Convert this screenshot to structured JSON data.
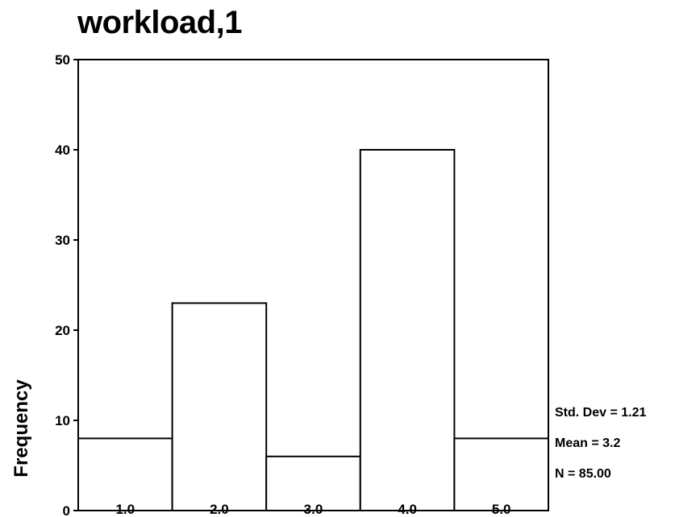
{
  "chart_data": {
    "type": "bar",
    "title": "workload,1",
    "xlabel": "",
    "ylabel": "Frequency",
    "categories": [
      "1.0",
      "2.0",
      "3.0",
      "4.0",
      "5.0"
    ],
    "values": [
      8,
      23,
      6,
      40,
      8
    ],
    "ylim": [
      0,
      50
    ],
    "yticks": [
      "0",
      "10",
      "20",
      "30",
      "40",
      "50"
    ],
    "grid": false,
    "stats": [
      "Std. Dev = 1.21",
      "Mean = 3.2",
      "N = 85.00"
    ]
  }
}
